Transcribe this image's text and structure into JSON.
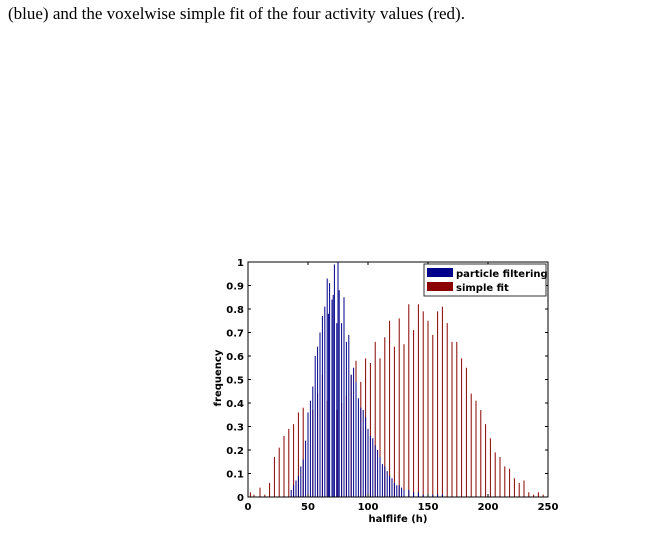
{
  "caption": "(blue) and the voxelwise simple fit of the four activity values (red).",
  "chart_data": {
    "type": "bar",
    "xlabel": "halflife (h)",
    "ylabel": "frequency",
    "xlim": [
      0,
      250
    ],
    "ylim": [
      0,
      1
    ],
    "xticks": [
      0,
      50,
      100,
      150,
      200,
      250
    ],
    "yticks": [
      0,
      0.1,
      0.2,
      0.3,
      0.4,
      0.5,
      0.6,
      0.7,
      0.8,
      0.9,
      1
    ],
    "xtick_labels": [
      "0",
      "50",
      "100",
      "150",
      "200",
      "250"
    ],
    "ytick_labels": [
      "0",
      "0.1",
      "0.2",
      "0.3",
      "0.4",
      "0.5",
      "0.6",
      "0.7",
      "0.8",
      "0.9",
      "1"
    ],
    "grid": false,
    "legend_position": "top-right",
    "series": [
      {
        "name": "simple fit",
        "color": "#8b0000",
        "x": [
          2,
          5,
          10,
          14,
          18,
          22,
          26,
          30,
          34,
          38,
          42,
          46,
          50,
          54,
          58,
          62,
          66,
          70,
          74,
          78,
          82,
          86,
          90,
          94,
          98,
          102,
          106,
          110,
          114,
          118,
          122,
          126,
          130,
          134,
          138,
          142,
          146,
          150,
          154,
          158,
          162,
          166,
          170,
          174,
          178,
          182,
          186,
          190,
          194,
          198,
          202,
          206,
          210,
          214,
          218,
          222,
          226,
          230,
          234,
          238,
          242,
          246
        ],
        "values": [
          0.02,
          0.01,
          0.04,
          0.01,
          0.06,
          0.17,
          0.21,
          0.26,
          0.29,
          0.31,
          0.36,
          0.38,
          0.33,
          0.37,
          0.44,
          0.52,
          0.41,
          0.48,
          0.37,
          0.4,
          0.43,
          0.52,
          0.58,
          0.49,
          0.59,
          0.57,
          0.66,
          0.59,
          0.68,
          0.75,
          0.64,
          0.76,
          0.65,
          0.82,
          0.71,
          0.82,
          0.79,
          0.75,
          0.69,
          0.79,
          0.81,
          0.74,
          0.66,
          0.66,
          0.59,
          0.55,
          0.44,
          0.41,
          0.37,
          0.31,
          0.25,
          0.19,
          0.17,
          0.13,
          0.12,
          0.08,
          0.06,
          0.07,
          0.02,
          0.01,
          0.02,
          0.01
        ]
      },
      {
        "name": "particle filtering",
        "color": "#00008b",
        "x": [
          36,
          38,
          40,
          42,
          44,
          46,
          48,
          50,
          52,
          54,
          56,
          58,
          60,
          62,
          64,
          66,
          67,
          68,
          70,
          71,
          72,
          74,
          75,
          76,
          78,
          80,
          82,
          84,
          86,
          88,
          90,
          92,
          94,
          96,
          98,
          100,
          102,
          104,
          106,
          108,
          110,
          112,
          114,
          116,
          118,
          120,
          122,
          124,
          126,
          128,
          130,
          134,
          138,
          142,
          146,
          150,
          154,
          158,
          162
        ],
        "values": [
          0.03,
          0.05,
          0.07,
          0.09,
          0.13,
          0.16,
          0.24,
          0.36,
          0.41,
          0.47,
          0.6,
          0.64,
          0.7,
          0.77,
          0.81,
          0.93,
          0.78,
          0.91,
          0.84,
          0.86,
          0.99,
          0.74,
          1.0,
          0.88,
          0.74,
          0.85,
          0.66,
          0.69,
          0.52,
          0.55,
          0.49,
          0.42,
          0.38,
          0.37,
          0.34,
          0.29,
          0.26,
          0.25,
          0.22,
          0.2,
          0.17,
          0.14,
          0.13,
          0.11,
          0.09,
          0.08,
          0.06,
          0.05,
          0.05,
          0.04,
          0.03,
          0.03,
          0.02,
          0.02,
          0.01,
          0.01,
          0.01,
          0.01,
          0.01
        ]
      }
    ]
  }
}
